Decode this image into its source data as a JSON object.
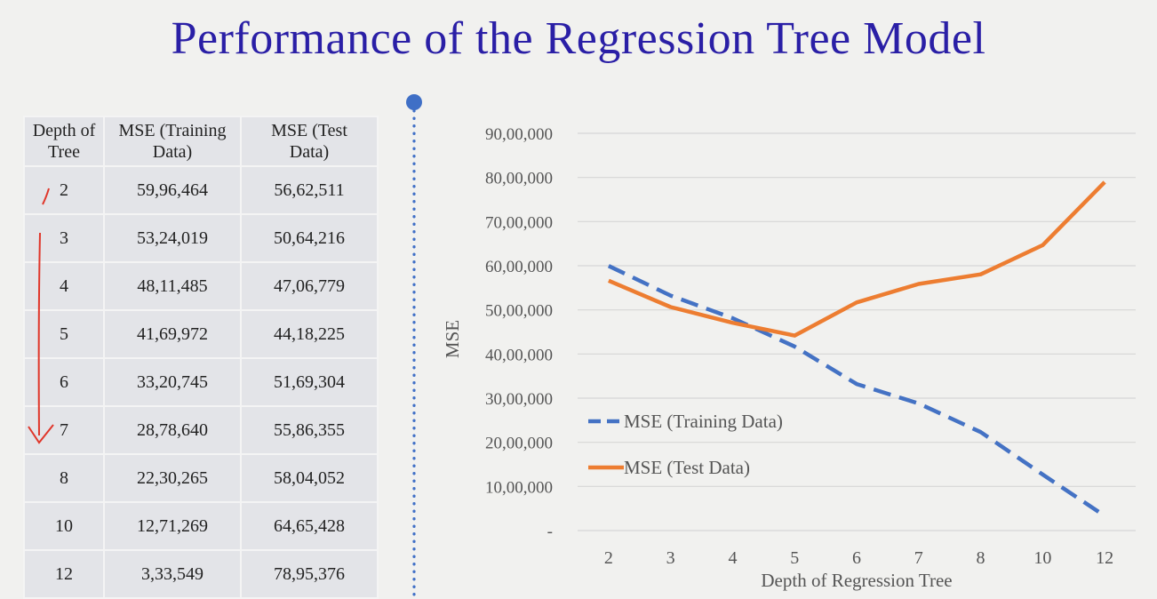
{
  "slide": {
    "title": "Performance of the Regression Tree Model"
  },
  "table": {
    "headers": [
      "Depth of Tree",
      "MSE (Training Data)",
      "MSE (Test Data)"
    ],
    "header_lines": [
      [
        "Depth of",
        "Tree"
      ],
      [
        "MSE (Training",
        "Data)"
      ],
      [
        "MSE (Test",
        "Data)"
      ]
    ],
    "rows": [
      [
        "2",
        "59,96,464",
        "56,62,511"
      ],
      [
        "3",
        "53,24,019",
        "50,64,216"
      ],
      [
        "4",
        "48,11,485",
        "47,06,779"
      ],
      [
        "5",
        "41,69,972",
        "44,18,225"
      ],
      [
        "6",
        "33,20,745",
        "51,69,304"
      ],
      [
        "7",
        "28,78,640",
        "55,86,355"
      ],
      [
        "8",
        "22,30,265",
        "58,04,052"
      ],
      [
        "10",
        "12,71,269",
        "64,65,428"
      ],
      [
        "12",
        "3,33,549",
        "78,95,376"
      ]
    ]
  },
  "chart_data": {
    "type": "line",
    "categories": [
      "2",
      "3",
      "4",
      "5",
      "6",
      "7",
      "8",
      "10",
      "12"
    ],
    "series": [
      {
        "name": "MSE (Training Data)",
        "values": [
          5996464,
          5324019,
          4811485,
          4169972,
          3320745,
          2878640,
          2230265,
          1271269,
          333549
        ],
        "color": "#4472c4",
        "style": "dashed"
      },
      {
        "name": "MSE (Test Data)",
        "values": [
          5662511,
          5064216,
          4706779,
          4418225,
          5169304,
          5586355,
          5804052,
          6465428,
          7895376
        ],
        "color": "#ed7d31",
        "style": "solid"
      }
    ],
    "ylim": [
      0,
      9000000
    ],
    "yticks": [
      0,
      1000000,
      2000000,
      3000000,
      4000000,
      5000000,
      6000000,
      7000000,
      8000000,
      9000000
    ],
    "ytick_labels": [
      "-",
      "10,00,000",
      "20,00,000",
      "30,00,000",
      "40,00,000",
      "50,00,000",
      "60,00,000",
      "70,00,000",
      "80,00,000",
      "90,00,000"
    ],
    "xlabel": "Depth of Regression Tree",
    "ylabel": "MSE",
    "grid": true,
    "legend_position": "inside-bottom-left"
  },
  "colors": {
    "title": "#2a1fa6",
    "annotation": "#e0362a",
    "divider": "#3f6fc6"
  }
}
